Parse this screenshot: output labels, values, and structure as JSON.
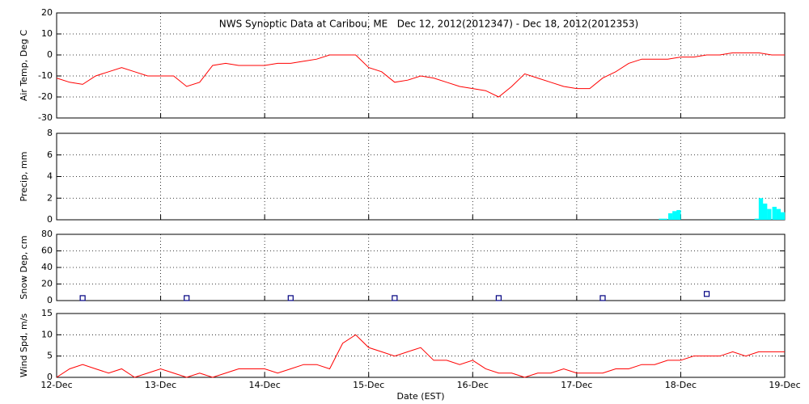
{
  "chart_data": [
    {
      "type": "line",
      "title": "NWS Synoptic Data at Caribou, ME   Dec 12, 2012(2012347) - Dec 18, 2012(2012353)",
      "y_label": "Air Temp, Deg C",
      "color": "#ff0000",
      "x": [
        0,
        0.125,
        0.25,
        0.375,
        0.5,
        0.625,
        0.75,
        0.875,
        1,
        1.125,
        1.25,
        1.375,
        1.5,
        1.625,
        1.75,
        1.875,
        2,
        2.125,
        2.25,
        2.375,
        2.5,
        2.625,
        2.75,
        2.875,
        3,
        3.125,
        3.25,
        3.375,
        3.5,
        3.625,
        3.75,
        3.875,
        4,
        4.125,
        4.25,
        4.375,
        4.5,
        4.625,
        4.75,
        4.875,
        5,
        5.125,
        5.25,
        5.375,
        5.5,
        5.625,
        5.75,
        5.875,
        6,
        6.125,
        6.25,
        6.375,
        6.5,
        6.625,
        6.75,
        6.875,
        7
      ],
      "values": [
        -11,
        -13,
        -14,
        -10,
        -8,
        -6,
        -8,
        -10,
        -10,
        -10,
        -15,
        -13,
        -5,
        -4,
        -5,
        -5,
        -5,
        -4,
        -4,
        -3,
        -2,
        0,
        0,
        0,
        -6,
        -8,
        -13,
        -12,
        -10,
        -11,
        -13,
        -15,
        -16,
        -17,
        -20,
        -15,
        -9,
        -11,
        -13,
        -15,
        -16,
        -16,
        -11,
        -8,
        -4,
        -2,
        -2,
        -2,
        -1,
        -1,
        0,
        0,
        1,
        1,
        1,
        0,
        0
      ],
      "xlim": [
        0,
        7
      ],
      "xticks": [
        0,
        1,
        2,
        3,
        4,
        5,
        6,
        7
      ],
      "ylim": [
        -30,
        20
      ],
      "yticks": [
        -30,
        -20,
        -10,
        0,
        10,
        20
      ],
      "grid": true
    },
    {
      "type": "bar",
      "y_label": "Precip, mm",
      "color": "#00ffff",
      "x": [
        5.79,
        5.83,
        5.88,
        5.92,
        5.96,
        6.71,
        6.75,
        6.79,
        6.83,
        6.88,
        6.92,
        6.96
      ],
      "values": [
        0.1,
        0.1,
        0.6,
        0.8,
        0.9,
        0.1,
        2.0,
        1.5,
        1.0,
        1.2,
        1.0,
        0.7
      ],
      "xlim": [
        0,
        7
      ],
      "xticks": [
        0,
        1,
        2,
        3,
        4,
        5,
        6,
        7
      ],
      "ylim": [
        0,
        8
      ],
      "yticks": [
        0,
        2,
        4,
        6,
        8
      ],
      "grid": true
    },
    {
      "type": "scatter",
      "y_label": "Snow Dep, cm",
      "color": "#000080",
      "x": [
        0.25,
        1.25,
        2.25,
        3.25,
        4.25,
        5.25,
        6.25
      ],
      "values": [
        3,
        3,
        3,
        3,
        3,
        3,
        8
      ],
      "xlim": [
        0,
        7
      ],
      "xticks": [
        0,
        1,
        2,
        3,
        4,
        5,
        6,
        7
      ],
      "ylim": [
        0,
        80
      ],
      "yticks": [
        0,
        20,
        40,
        60,
        80
      ],
      "grid": true
    },
    {
      "type": "line",
      "y_label": "Wind Spd, m/s",
      "x_label": "Date (EST)",
      "color": "#ff0000",
      "x": [
        0,
        0.125,
        0.25,
        0.375,
        0.5,
        0.625,
        0.75,
        0.875,
        1,
        1.125,
        1.25,
        1.375,
        1.5,
        1.625,
        1.75,
        1.875,
        2,
        2.125,
        2.25,
        2.375,
        2.5,
        2.625,
        2.75,
        2.875,
        3,
        3.125,
        3.25,
        3.375,
        3.5,
        3.625,
        3.75,
        3.875,
        4,
        4.125,
        4.25,
        4.375,
        4.5,
        4.625,
        4.75,
        4.875,
        5,
        5.125,
        5.25,
        5.375,
        5.5,
        5.625,
        5.75,
        5.875,
        6,
        6.125,
        6.25,
        6.375,
        6.5,
        6.625,
        6.75,
        6.875,
        7
      ],
      "values": [
        0,
        2,
        3,
        2,
        1,
        2,
        0,
        1,
        2,
        1,
        0,
        1,
        0,
        1,
        2,
        2,
        2,
        1,
        2,
        3,
        3,
        2,
        8,
        10,
        7,
        6,
        5,
        6,
        7,
        4,
        4,
        3,
        4,
        2,
        1,
        1,
        0,
        1,
        1,
        2,
        1,
        1,
        1,
        2,
        2,
        3,
        3,
        4,
        4,
        5,
        5,
        5,
        6,
        5,
        6,
        6,
        6
      ],
      "xlim": [
        0,
        7
      ],
      "xticks": [
        {
          "value": 0,
          "label": "12-Dec"
        },
        {
          "value": 1,
          "label": "13-Dec"
        },
        {
          "value": 2,
          "label": "14-Dec"
        },
        {
          "value": 3,
          "label": "15-Dec"
        },
        {
          "value": 4,
          "label": "16-Dec"
        },
        {
          "value": 5,
          "label": "17-Dec"
        },
        {
          "value": 6,
          "label": "18-Dec"
        },
        {
          "value": 7,
          "label": "19-Dec"
        }
      ],
      "ylim": [
        0,
        15
      ],
      "yticks": [
        0,
        5,
        10,
        15
      ],
      "grid": true
    }
  ]
}
